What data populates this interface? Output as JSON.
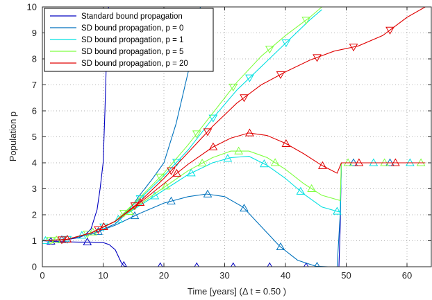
{
  "chart_data": {
    "type": "line",
    "title": "",
    "xlabel": "Time [years] (Δ t = 0.50 )",
    "ylabel": "Population p",
    "xlim": [
      0,
      64
    ],
    "ylim": [
      0,
      10
    ],
    "xticks": [
      0,
      10,
      20,
      30,
      40,
      50,
      60
    ],
    "yticks": [
      0,
      1,
      2,
      3,
      4,
      5,
      6,
      7,
      8,
      9,
      10
    ],
    "grid": true,
    "legend_position": "top-left",
    "series": [
      {
        "name": "Standard bound propagation",
        "color": "#0000c0",
        "marker": "",
        "bound": "upper",
        "x": [
          0,
          2,
          4,
          6,
          7,
          8,
          9,
          9.5,
          10,
          10.3,
          10.6,
          10.9
        ],
        "y": [
          1.0,
          1.01,
          1.04,
          1.12,
          1.22,
          1.45,
          2.2,
          3.0,
          4.0,
          6.0,
          8.5,
          10.0
        ]
      },
      {
        "name": "",
        "color": "#0000c0",
        "marker": "triangle-up",
        "bound": "lower",
        "x": [
          0,
          2,
          4,
          6,
          8,
          10,
          11,
          12,
          12.5,
          13,
          13.5,
          14,
          18,
          24,
          30,
          36,
          42,
          48,
          48.8,
          49,
          49.2
        ],
        "y": [
          1.0,
          0.97,
          0.96,
          0.95,
          0.95,
          0.93,
          0.85,
          0.65,
          0.4,
          0.15,
          0.02,
          0.0,
          0.0,
          0.0,
          0.0,
          0.0,
          0.0,
          0.0,
          0.0,
          1.5,
          4.0
        ]
      },
      {
        "name": "SD bound propagation, p = 0",
        "color": "#0072bd",
        "marker": "",
        "bound": "upper",
        "x": [
          0,
          4,
          8,
          12,
          14,
          16,
          18,
          20,
          22,
          24,
          25,
          26
        ],
        "y": [
          1.0,
          1.05,
          1.25,
          1.65,
          2.1,
          2.75,
          3.35,
          4.0,
          5.5,
          7.5,
          8.8,
          10.0
        ]
      },
      {
        "name": "",
        "color": "#0072bd",
        "marker": "triangle-up",
        "bound": "lower",
        "x": [
          0,
          4,
          8,
          12,
          16,
          20,
          24,
          27,
          30,
          33,
          36,
          39,
          42,
          45,
          47,
          48.5,
          49,
          49.2,
          50,
          55,
          60,
          63
        ],
        "y": [
          1.0,
          1.05,
          1.25,
          1.6,
          2.05,
          2.45,
          2.7,
          2.8,
          2.7,
          2.3,
          1.55,
          0.8,
          0.25,
          0.02,
          0.0,
          0.0,
          2.0,
          4.0,
          4.0,
          4.0,
          4.0,
          4.0
        ]
      },
      {
        "name": "SD bound propagation, p = 1",
        "color": "#00e0e0",
        "marker": "triangle-down",
        "bound": "upper",
        "x": [
          0,
          4,
          8,
          12,
          16,
          20,
          24,
          28,
          32,
          36,
          40,
          44,
          46
        ],
        "y": [
          1.0,
          1.05,
          1.3,
          1.75,
          2.6,
          3.5,
          4.5,
          5.7,
          6.8,
          7.7,
          8.6,
          9.5,
          9.9
        ]
      },
      {
        "name": "",
        "color": "#00e0e0",
        "marker": "triangle-up",
        "bound": "lower",
        "x": [
          0,
          4,
          8,
          12,
          16,
          20,
          24,
          28,
          31,
          34,
          37,
          40,
          43,
          46,
          49,
          49.2,
          50,
          55,
          60,
          63
        ],
        "y": [
          1.0,
          1.05,
          1.3,
          1.75,
          2.35,
          2.95,
          3.55,
          4.0,
          4.2,
          4.25,
          3.9,
          3.4,
          2.8,
          2.3,
          2.1,
          4.0,
          4.0,
          4.0,
          4.0,
          4.0
        ]
      },
      {
        "name": "SD bound propagation, p = 5",
        "color": "#7fff40",
        "marker": "triangle-down",
        "bound": "upper",
        "x": [
          0,
          4,
          8,
          12,
          16,
          20,
          24,
          28,
          32,
          36,
          40,
          44,
          46
        ],
        "y": [
          1.0,
          1.05,
          1.3,
          1.75,
          2.65,
          3.6,
          4.7,
          5.9,
          7.1,
          8.1,
          8.9,
          9.6,
          10.0
        ]
      },
      {
        "name": "",
        "color": "#7fff40",
        "marker": "triangle-up",
        "bound": "lower",
        "x": [
          0,
          4,
          8,
          12,
          16,
          20,
          24,
          28,
          31,
          34,
          37,
          40,
          43,
          46,
          49,
          49.2,
          50,
          55,
          60,
          63
        ],
        "y": [
          1.0,
          1.05,
          1.3,
          1.75,
          2.4,
          3.05,
          3.7,
          4.2,
          4.45,
          4.45,
          4.2,
          3.75,
          3.2,
          2.75,
          2.55,
          4.0,
          4.0,
          4.0,
          4.0,
          4.0
        ]
      },
      {
        "name": "SD bound propagation, p = 20",
        "color": "#e00000",
        "marker": "triangle-down",
        "bound": "upper",
        "x": [
          0,
          4,
          8,
          12,
          16,
          20,
          24,
          28,
          32,
          36,
          40,
          44,
          48,
          52,
          56,
          60,
          63
        ],
        "y": [
          1.0,
          1.05,
          1.3,
          1.75,
          2.5,
          3.4,
          4.4,
          5.4,
          6.3,
          7.0,
          7.5,
          7.95,
          8.3,
          8.5,
          8.9,
          9.6,
          10.0
        ]
      },
      {
        "name": "",
        "color": "#e00000",
        "marker": "triangle-up",
        "bound": "lower",
        "x": [
          0,
          4,
          8,
          12,
          16,
          20,
          24,
          28,
          31,
          34,
          37,
          40,
          43,
          46,
          48.5,
          49.2,
          50,
          55,
          60,
          63
        ],
        "y": [
          1.0,
          1.05,
          1.3,
          1.75,
          2.45,
          3.2,
          3.95,
          4.6,
          4.95,
          5.15,
          5.05,
          4.75,
          4.35,
          3.9,
          3.6,
          4.0,
          4.0,
          4.0,
          4.0,
          4.0
        ]
      }
    ]
  }
}
